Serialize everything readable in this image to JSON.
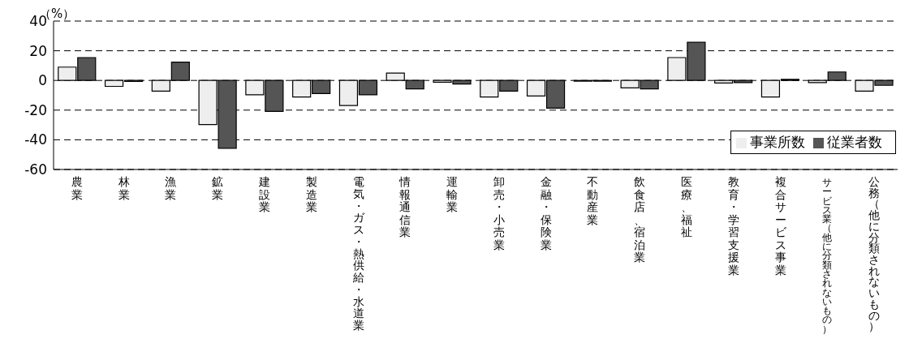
{
  "chart_data": {
    "type": "bar",
    "ylabel": "（%）",
    "categories": [
      "農業",
      "林業",
      "漁業",
      "鉱業",
      "建設業",
      "製造業",
      "電気・ガス・熱供給・水道業",
      "情報通信業",
      "運輸業",
      "卸売・小売業",
      "金融・保険業",
      "不動産業",
      "飲食店、宿泊業",
      "医療、福祉",
      "教育・学習支援業",
      "複合サービス事業",
      "サービス業（他に分類されないもの）",
      "公務（他に分類されないもの）"
    ],
    "series": [
      {
        "name": "事業所数",
        "color": "#eeeeee",
        "values": [
          9.0,
          -4.0,
          -7.2,
          -29.7,
          -9.7,
          -11.2,
          -16.9,
          5.0,
          -1.2,
          -11.2,
          -10.5,
          -0.5,
          -5.0,
          15.4,
          -1.7,
          -11.2,
          -1.5,
          -7.2
        ]
      },
      {
        "name": "従業者数",
        "color": "#555555",
        "values": [
          15.4,
          -0.7,
          12.3,
          -45.7,
          -20.9,
          -8.8,
          -9.7,
          -5.7,
          -2.4,
          -7.2,
          -18.7,
          -0.5,
          -5.7,
          25.7,
          -1.5,
          0.7,
          5.7,
          -3.3
        ]
      }
    ],
    "ylim": [
      -60,
      40
    ],
    "yticks": [
      -60,
      -40,
      -20,
      0,
      20,
      40
    ],
    "grid": "y",
    "legend": "bottom right"
  }
}
